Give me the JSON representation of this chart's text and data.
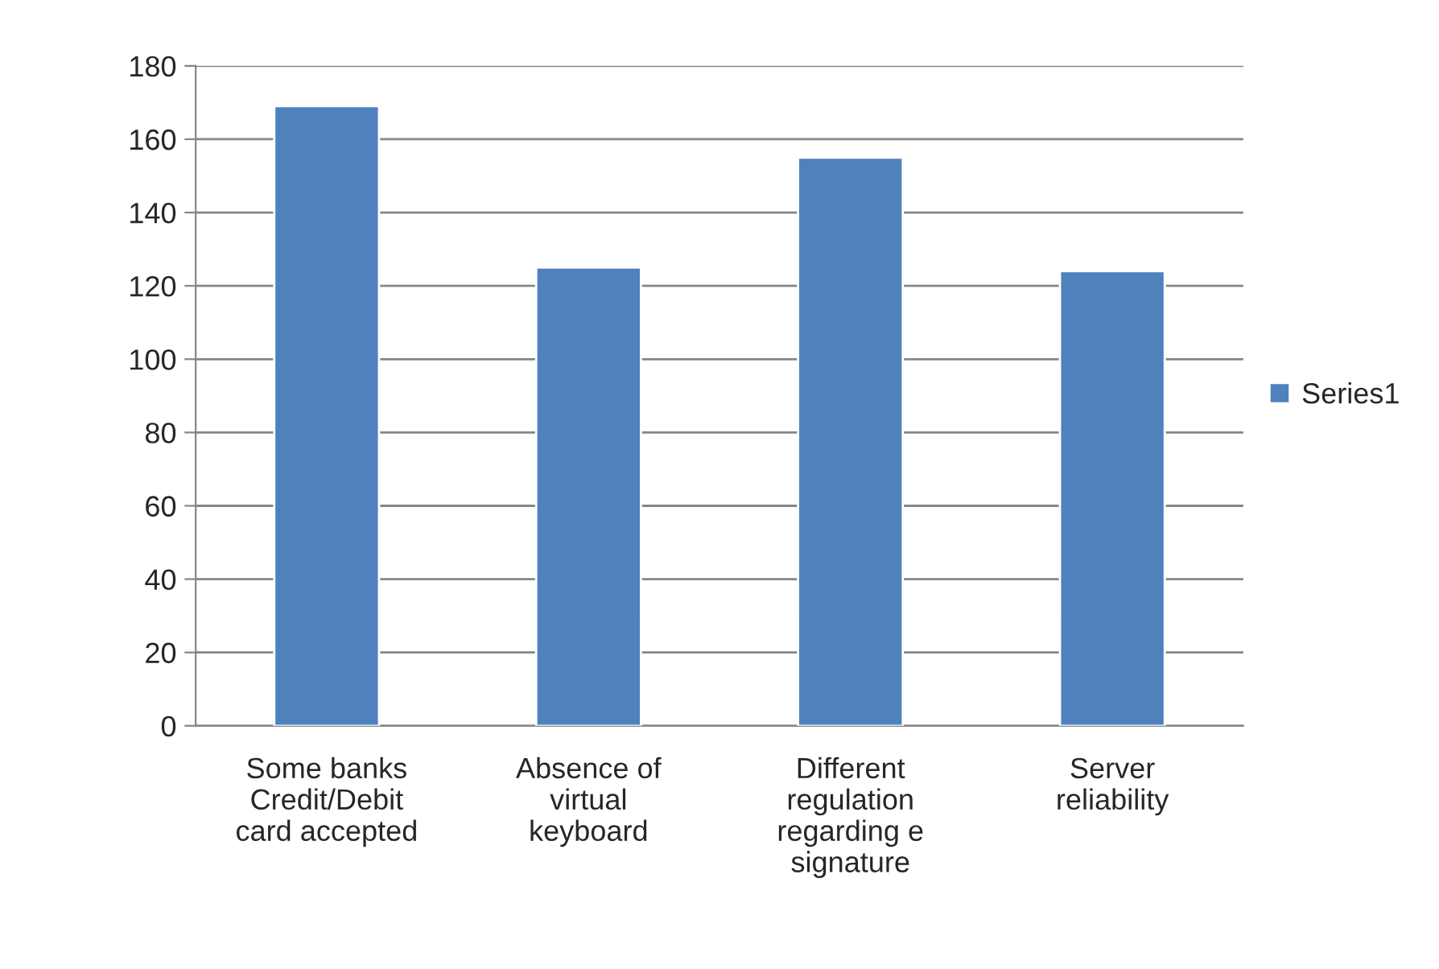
{
  "chart_data": {
    "type": "bar",
    "categories": [
      "Some banks Credit/Debit card accepted",
      "Absence of virtual keyboard",
      "Different regulation regarding e signature",
      "Server reliability"
    ],
    "series": [
      {
        "name": "Series1",
        "color": "#4f81bd",
        "values": [
          169,
          125,
          155,
          124
        ]
      }
    ],
    "ylim": [
      0,
      180
    ],
    "yticks": [
      0,
      20,
      40,
      60,
      80,
      100,
      120,
      140,
      160,
      180
    ],
    "grid": "y",
    "legend": "right"
  }
}
